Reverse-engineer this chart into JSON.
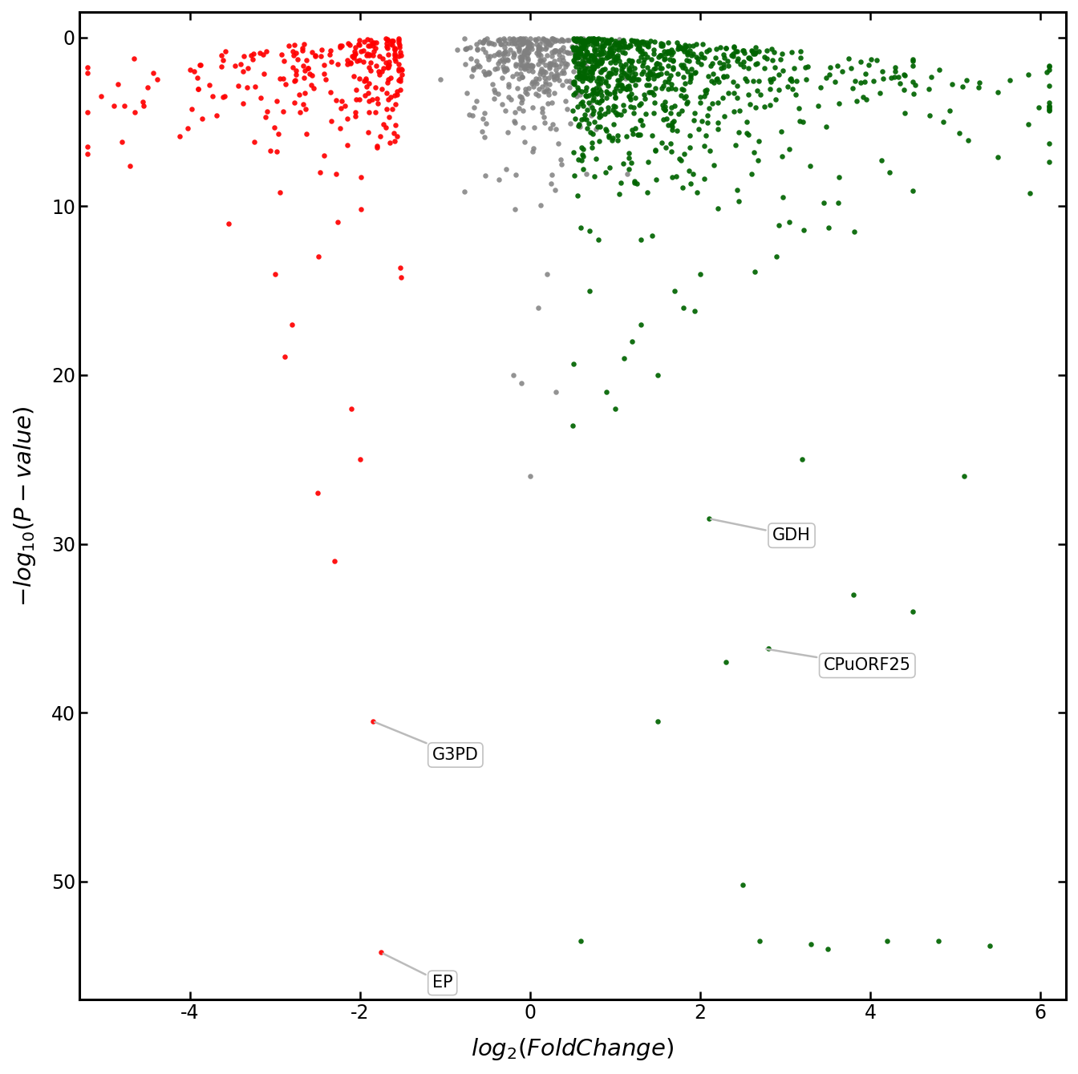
{
  "xlabel": "$\\mathit{log_2(FoldChange)}$",
  "ylabel": "$-\\mathit{log_{10}(P-value)}$",
  "xlim": [
    -5.3,
    6.3
  ],
  "ylim": [
    57,
    -1.5
  ],
  "xticks": [
    -4,
    -2,
    0,
    2,
    4,
    6
  ],
  "yticks": [
    0,
    10,
    20,
    30,
    40,
    50
  ],
  "background_color": "#ffffff",
  "red_color": "#ff0000",
  "green_color": "#006400",
  "gray_color": "#808080",
  "annotations": [
    {
      "label": "GDH",
      "xp": 2.1,
      "yp": 28.5,
      "xt": 2.85,
      "yt": 29.5
    },
    {
      "label": "CPuORF25",
      "xp": 2.75,
      "yp": 36.2,
      "xt": 3.45,
      "yt": 37.2
    },
    {
      "label": "G3PD",
      "xp": -1.85,
      "yp": 40.5,
      "xt": -1.15,
      "yt": 42.5
    },
    {
      "label": "EP",
      "xp": -1.75,
      "yp": 54.2,
      "xt": -1.15,
      "yt": 56.0
    }
  ],
  "seed": 42,
  "n_red": 700,
  "n_green": 1000,
  "n_gray": 400
}
